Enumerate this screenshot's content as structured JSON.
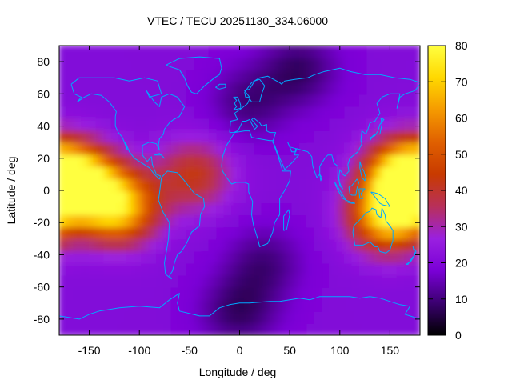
{
  "chart_data": {
    "type": "heatmap",
    "title": "VTEC / TECU 20251130_334.06000",
    "xlabel": "Longitude / deg",
    "ylabel": "Latitude / deg",
    "xlim": [
      -180,
      180
    ],
    "ylim": [
      -90,
      90
    ],
    "x_ticks": [
      -150,
      -100,
      -50,
      0,
      50,
      100,
      150
    ],
    "y_ticks": [
      80,
      60,
      40,
      20,
      0,
      -20,
      -40,
      -60,
      -80
    ],
    "colorbar": {
      "range": [
        0,
        80
      ],
      "ticks": [
        0,
        10,
        20,
        30,
        40,
        50,
        60,
        70,
        80
      ],
      "palette": [
        "#000000",
        "#3b0070",
        "#7a00d6",
        "#9a20e0",
        "#b8305a",
        "#c83a00",
        "#e06000",
        "#f59a00",
        "#ffd800",
        "#ffff40"
      ]
    },
    "coastline_color": "#00a8ff",
    "vtec_features": [
      {
        "lon": -160,
        "lat": 5,
        "vtec": 78
      },
      {
        "lon": -120,
        "lat": -10,
        "vtec": 70
      },
      {
        "lon": 165,
        "lat": 10,
        "vtec": 75
      },
      {
        "lon": 150,
        "lat": -15,
        "vtec": 72
      },
      {
        "lon": -45,
        "lat": 10,
        "vtec": 42
      },
      {
        "lon": 25,
        "lat": -45,
        "vtec": 10
      },
      {
        "lon": 60,
        "lat": 75,
        "vtec": 8
      },
      {
        "lon": 10,
        "lat": 55,
        "vtec": 10
      },
      {
        "lon": 0,
        "lat": -75,
        "vtec": 8
      }
    ]
  }
}
